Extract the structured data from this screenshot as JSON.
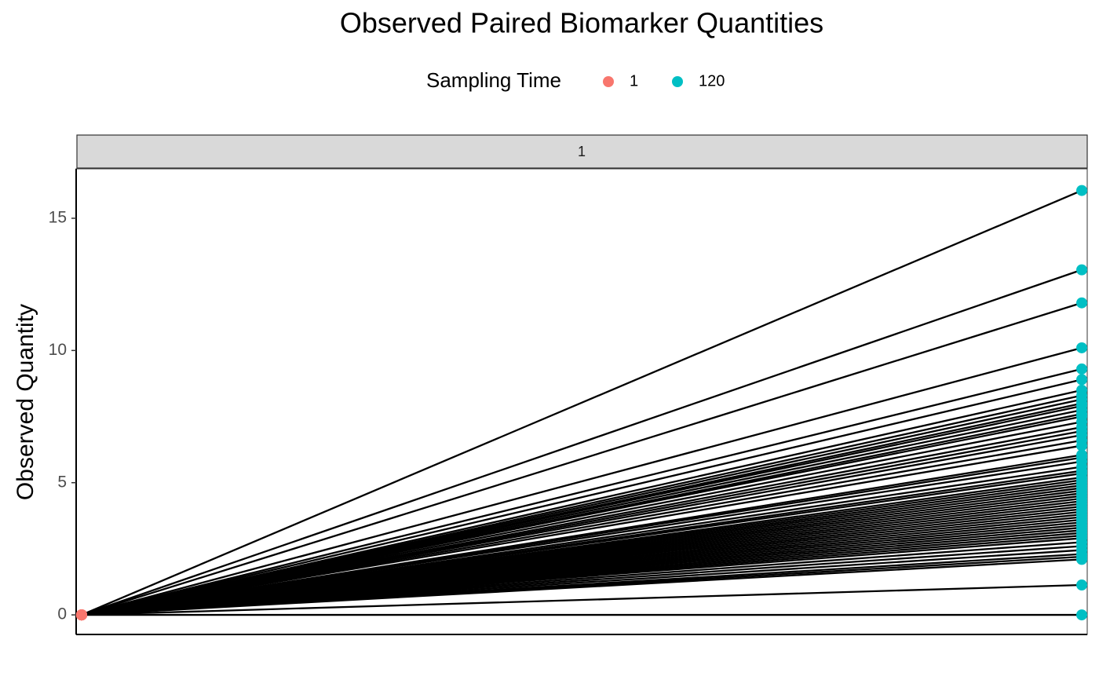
{
  "chart_data": {
    "type": "paired_line",
    "title": "Observed Paired Biomarker Quantities",
    "legend_title": "Sampling Time",
    "x": [
      1,
      120
    ],
    "colors": [
      "#F8766D",
      "#00BFC4"
    ],
    "line_color": "#000000",
    "facet_label": "1",
    "y_label": "Observed Quantity",
    "xlim": [
      0.35,
      120.65
    ],
    "ylim": [
      -0.74,
      16.87
    ],
    "yticks": [
      0,
      5,
      10,
      15
    ],
    "start": [
      0,
      0,
      0,
      0,
      0,
      0,
      0,
      0,
      0,
      0,
      0,
      0,
      0,
      0,
      0,
      0,
      0,
      0,
      0,
      0,
      0,
      0,
      0,
      0,
      0,
      0,
      0,
      0,
      0,
      0,
      0,
      0,
      0,
      0,
      0,
      0,
      0,
      0,
      0,
      0,
      0,
      0,
      0,
      0,
      0,
      0,
      0,
      0,
      0,
      0,
      0,
      0,
      0,
      0,
      0,
      0,
      0,
      0
    ],
    "end": [
      16.05,
      13.05,
      11.8,
      10.1,
      9.3,
      8.9,
      8.5,
      8.3,
      8.15,
      8.0,
      7.9,
      7.75,
      7.6,
      7.5,
      7.3,
      7.1,
      6.95,
      6.8,
      6.6,
      6.4,
      6.05,
      5.95,
      5.8,
      5.6,
      5.45,
      5.35,
      5.2,
      5.1,
      5.0,
      4.9,
      4.8,
      4.7,
      4.6,
      4.5,
      4.4,
      4.3,
      4.2,
      4.1,
      4.0,
      3.9,
      3.8,
      3.7,
      3.6,
      3.5,
      3.4,
      3.3,
      3.2,
      3.1,
      3.0,
      2.9,
      2.75,
      2.6,
      2.45,
      2.3,
      2.2,
      2.1,
      1.13,
      0
    ]
  }
}
